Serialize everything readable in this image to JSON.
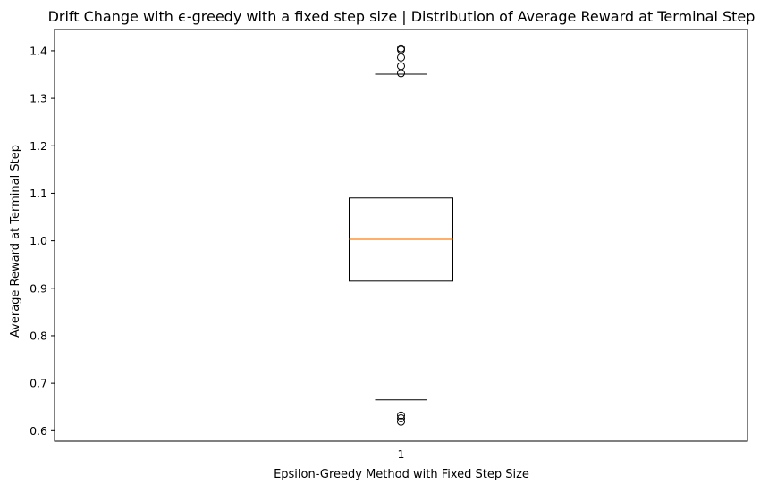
{
  "chart_data": {
    "type": "box",
    "title": "Drift Change with ϵ-greedy with a fixed step size | Distribution of Average Reward at Terminal Step",
    "xlabel": "Epsilon-Greedy Method with Fixed Step Size",
    "ylabel": "Average Reward at Terminal Step",
    "categories": [
      "1"
    ],
    "ylim": [
      0.578,
      1.445
    ],
    "yticks": [
      0.6,
      0.7,
      0.8,
      0.9,
      1.0,
      1.1,
      1.2,
      1.3,
      1.4
    ],
    "ytick_labels": [
      "0.6",
      "0.7",
      "0.8",
      "0.9",
      "1.0",
      "1.1",
      "1.2",
      "1.3",
      "1.4"
    ],
    "boxes": [
      {
        "category": "1",
        "whisker_low": 0.665,
        "q1": 0.915,
        "median": 1.003,
        "q3": 1.09,
        "whisker_high": 1.351,
        "outliers": [
          0.619,
          0.626,
          0.632,
          1.353,
          1.368,
          1.386,
          1.402,
          1.405
        ]
      }
    ],
    "grid": false,
    "legend": "none",
    "colors": {
      "box": "#000000",
      "median": "#ff7f0e",
      "outlier": "#000000",
      "background": "#ffffff"
    }
  }
}
